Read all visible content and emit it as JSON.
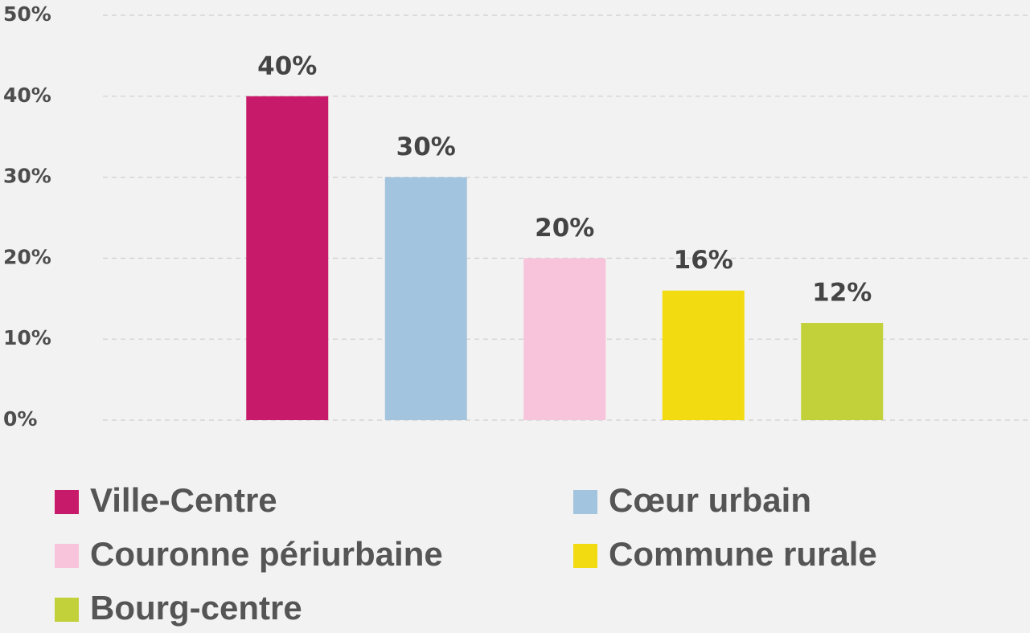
{
  "chart_data": {
    "type": "bar",
    "categories": [
      "Ville-Centre",
      "Cœur urbain",
      "Couronne périurbaine",
      "Commune rurale",
      "Bourg-centre"
    ],
    "values": [
      40,
      30,
      20,
      16,
      12
    ],
    "value_labels": [
      "40%",
      "30%",
      "20%",
      "16%",
      "12%"
    ],
    "colors": [
      "#c81a6a",
      "#a2c4de",
      "#f7c4db",
      "#f2dc11",
      "#c2d13a"
    ],
    "ylim": [
      0,
      50
    ],
    "yticks": [
      {
        "value": 0,
        "label": "0%"
      },
      {
        "value": 10,
        "label": "10%"
      },
      {
        "value": 20,
        "label": "20%"
      },
      {
        "value": 30,
        "label": "30%"
      },
      {
        "value": 40,
        "label": "40%"
      },
      {
        "value": 50,
        "label": "50%"
      }
    ],
    "grid": true
  }
}
